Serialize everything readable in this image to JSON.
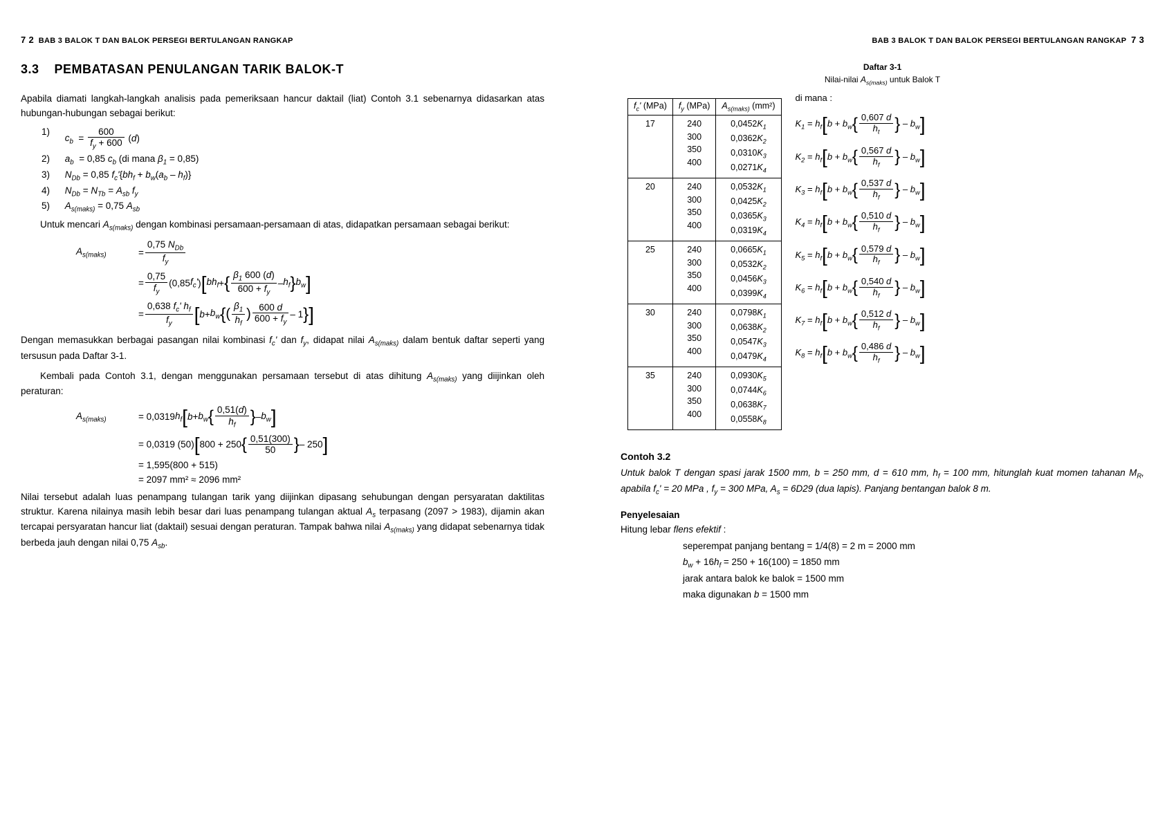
{
  "left": {
    "header_num": "7 2",
    "header_text": "BAB 3  BALOK T DAN BALOK PERSEGI BERTULANGAN RANGKAP",
    "section_num": "3.3",
    "section_title": "PEMBATASAN PENULANGAN TARIK BALOK-T",
    "p1": "Apabila diamati langkah-langkah analisis pada pemeriksaan hancur daktail (liat) Contoh 3.1 sebenarnya didasarkan atas hubungan-hubungan sebagai berikut:",
    "eqs": {
      "n1": "1)",
      "e1_lhs": "c_b",
      "n2": "2)",
      "e2": "a_b  = 0,85 c_b (di mana β_1 = 0,85)",
      "n3": "3)",
      "e3": "N_Db = 0,85 f_c'{bh_f + b_w(a_b – h_f)}",
      "n4": "4)",
      "e4": "N_Db = N_Tb = A_sb f_y",
      "n5": "5)",
      "e5": "A_s(maks) = 0,75 A_sb"
    },
    "p2": "Untuk mencari A_s(maks) dengan kombinasi persamaan-persamaan di atas, didapatkan persamaan sebagai berikut:",
    "deriv": {
      "lhs": "A_s(maks)",
      "r1_num": "0,75 N_Db",
      "r1_den": "f_y",
      "r2a": "0,75",
      "r2b": "(0,85 f_c')",
      "r2_inner_num": "β_1 600 (d)",
      "r2_inner_den": "600 + f_y",
      "r3a": "0,638 f_c' h_f",
      "r3_inner1_num": "β_1",
      "r3_inner1_den": "h_f",
      "r3_inner2_num": "600 d",
      "r3_inner2_den": "600 + f_y"
    },
    "p3": "Dengan memasukkan berbagai pasangan nilai kombinasi f_c' dan f_y, didapat nilai A_s(maks) dalam bentuk daftar seperti yang tersusun pada Daftar 3-1.",
    "p4": "Kembali pada Contoh 3.1, dengan menggunakan persamaan tersebut di atas dihitung A_s(maks) yang diijinkan oleh peraturan:",
    "calc": {
      "c1_coef": "= 0,0319 h_f",
      "c1_num": "0,51(d)",
      "c1_den": "h_f",
      "c2_coef": "= 0,0319 (50)",
      "c2_lbr": "800 + 250",
      "c2_num": "0,51(300)",
      "c2_den": "50",
      "c2_tail": "– 250",
      "c3": "= 1,595(800 + 515)",
      "c4": "= 2097 mm² ≈ 2096 mm²"
    },
    "p5": "Nilai tersebut adalah luas penampang tulangan tarik yang diijinkan dipasang sehubungan dengan persyaratan daktilitas struktur. Karena nilainya masih lebih besar dari luas penampang tulangan aktual A_s terpasang (2097 > 1983), dijamin akan tercapai persyaratan hancur liat (daktail) sesuai dengan peraturan. Tampak bahwa nilai A_s(maks) yang didapat sebenarnya tidak berbeda jauh dengan nilai 0,75 A_sb."
  },
  "right": {
    "header_text": "BAB 3  BALOK T DAN BALOK PERSEGI BERTULANGAN RANGKAP",
    "header_num": "7 3",
    "caption": "Daftar 3-1",
    "subcaption": "Nilai-nilai A_s(maks) untuk Balok T",
    "th1": "f_c' (MPa)",
    "th2": "f_y (MPa)",
    "th3": "A_s(maks) (mm²)",
    "dimana": "di mana :",
    "rows": [
      {
        "fc": "17",
        "fy": [
          "240",
          "300",
          "350",
          "400"
        ],
        "as": [
          "0,0452K_1",
          "0,0362K_2",
          "0,0310K_3",
          "0,0271K_4"
        ]
      },
      {
        "fc": "20",
        "fy": [
          "240",
          "300",
          "350",
          "400"
        ],
        "as": [
          "0,0532K_1",
          "0,0425K_2",
          "0,0365K_3",
          "0,0319K_4"
        ]
      },
      {
        "fc": "25",
        "fy": [
          "240",
          "300",
          "350",
          "400"
        ],
        "as": [
          "0,0665K_1",
          "0,0532K_2",
          "0,0456K_3",
          "0,0399K_4"
        ]
      },
      {
        "fc": "30",
        "fy": [
          "240",
          "300",
          "350",
          "400"
        ],
        "as": [
          "0,0798K_1",
          "0,0638K_2",
          "0,0547K_3",
          "0,0479K_4"
        ]
      },
      {
        "fc": "35",
        "fy": [
          "240",
          "300",
          "350",
          "400"
        ],
        "as": [
          "0,0930K_5",
          "0,0744K_6",
          "0,0638K_7",
          "0,0558K_8"
        ]
      }
    ],
    "formulas": [
      {
        "k": "K_1",
        "num": "0,607 d",
        "den": "h_t"
      },
      {
        "k": "K_2",
        "num": "0,567 d",
        "den": "h_f"
      },
      {
        "k": "K_3",
        "num": "0,537 d",
        "den": "h_f"
      },
      {
        "k": "K_4",
        "num": "0,510 d",
        "den": "h_f"
      },
      {
        "k": "K_5",
        "num": "0,579 d",
        "den": "h_f"
      },
      {
        "k": "K_6",
        "num": "0,540 d",
        "den": "h_f"
      },
      {
        "k": "K_7",
        "num": "0,512 d",
        "den": "h_f"
      },
      {
        "k": "K_8",
        "num": "0,486 d",
        "den": "h_f"
      }
    ],
    "contoh_title": "Contoh 3.2",
    "contoh_body": "Untuk balok T dengan spasi jarak 1500 mm, b = 250 mm, d = 610 mm, h_f = 100 mm, hitunglah kuat momen tahanan M_R, apabila f_c' = 20 MPa , f_y = 300 MPa, A_s = 6D29 (dua lapis). Panjang bentangan balok 8 m.",
    "peny_title": "Penyelesaian",
    "peny_line1": "Hitung lebar flens efektif :",
    "sol": [
      "seperempat panjang bentang = 1/4(8) = 2 m = 2000 mm",
      "b_w + 16h_f = 250 + 16(100) = 1850 mm",
      "jarak antara balok ke balok = 1500 mm",
      "maka digunakan b = 1500 mm"
    ]
  }
}
